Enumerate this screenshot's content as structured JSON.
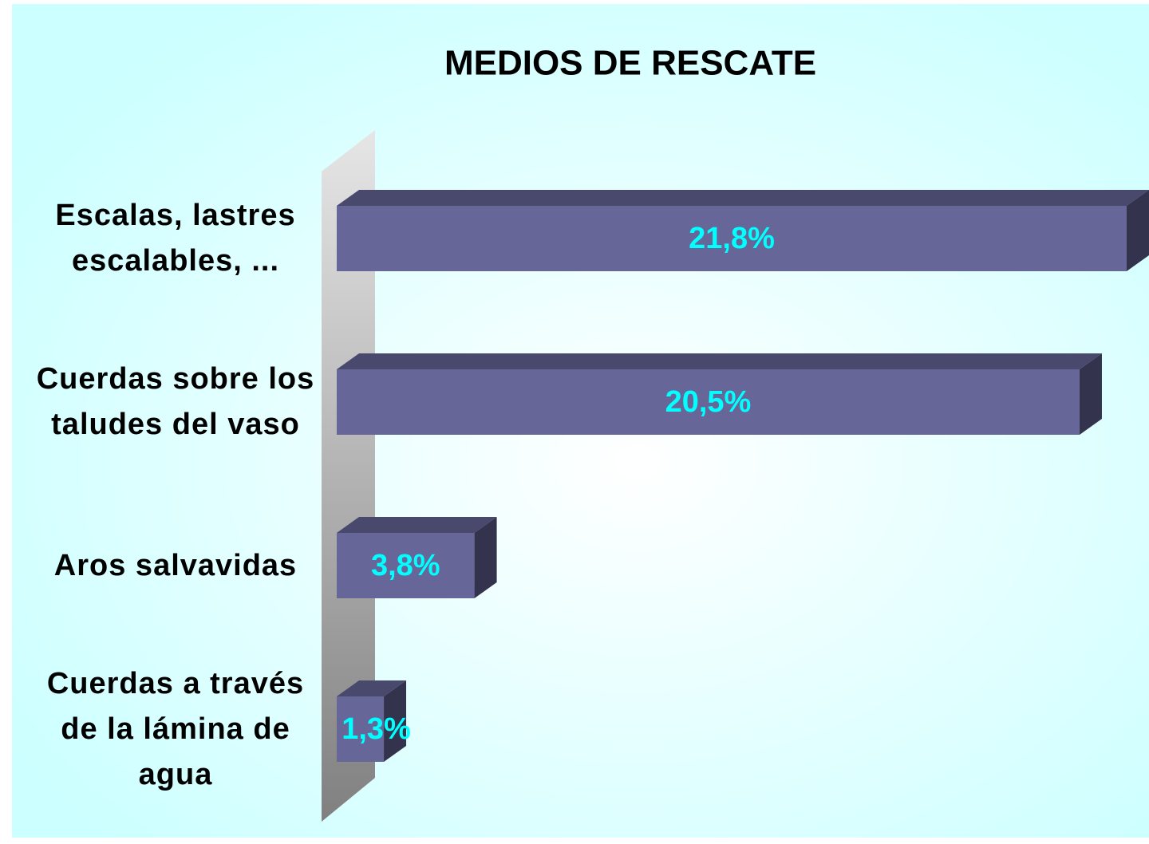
{
  "chart_data": {
    "type": "bar3d_horizontal",
    "title": "MEDIOS DE RESCATE",
    "categories": [
      "Escalas, lastres escalables, ...",
      "Cuerdas sobre los taludes del vaso",
      "Aros salvavidas",
      "Cuerdas a través de la lámina de agua"
    ],
    "values": [
      21.8,
      20.5,
      3.8,
      1.3
    ],
    "value_labels": [
      "21,8%",
      "20,5%",
      "3,8%",
      "1,3%"
    ],
    "color": "#666699",
    "label_color": "#00ffff"
  }
}
